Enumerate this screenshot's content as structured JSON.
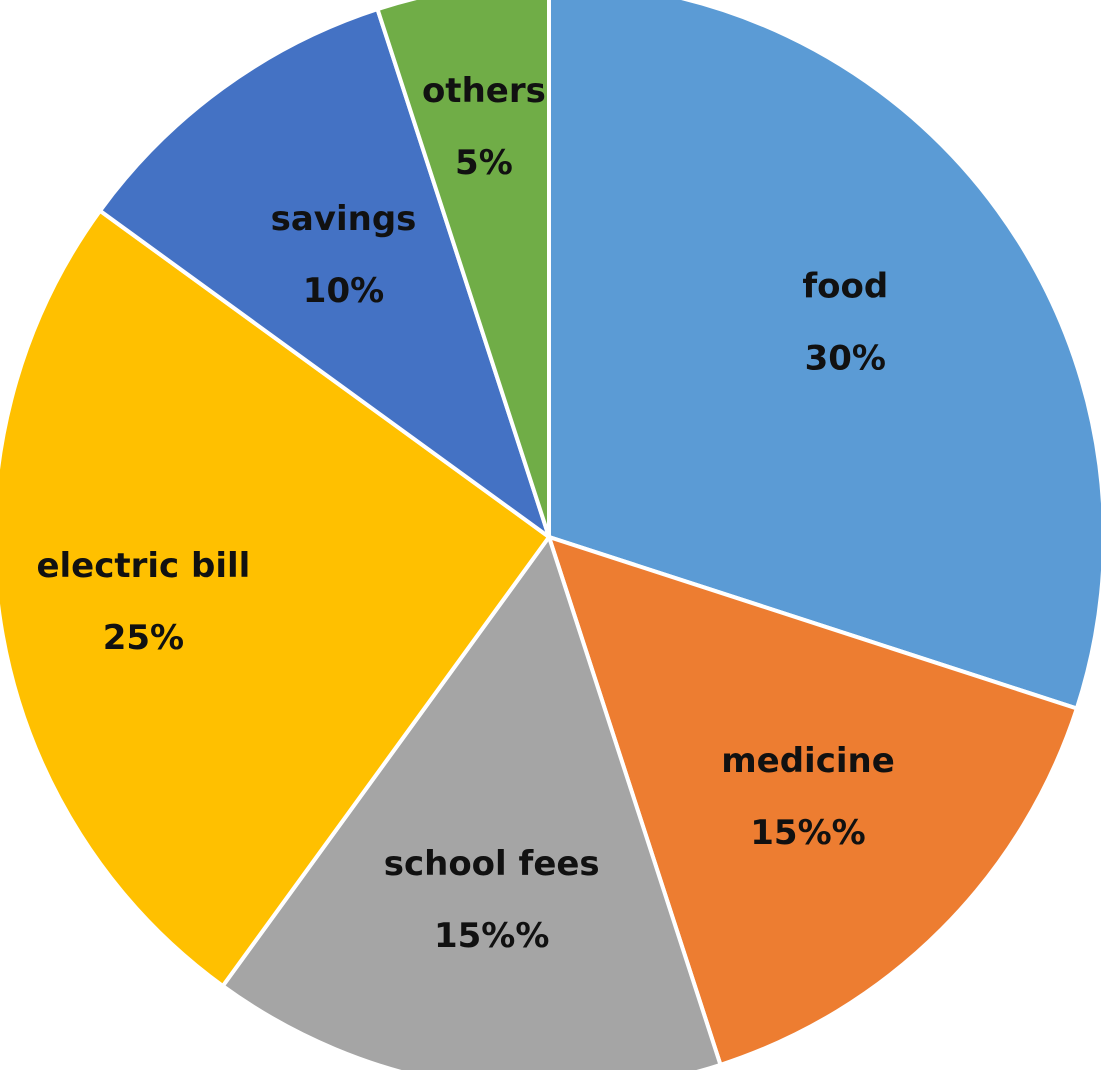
{
  "chart_data": {
    "type": "pie",
    "title": "",
    "start_angle_deg": 0,
    "direction": "clockwise",
    "slices": [
      {
        "label": "food",
        "value": 30,
        "display": "30%",
        "color": "#5B9BD5"
      },
      {
        "label": "medicine",
        "value": 15,
        "display": "15%%",
        "color": "#ED7D31"
      },
      {
        "label": "school fees",
        "value": 15,
        "display": "15%%",
        "color": "#A5A5A5"
      },
      {
        "label": "electric bill",
        "value": 25,
        "display": "25%",
        "color": "#FFC000"
      },
      {
        "label": "savings",
        "value": 10,
        "display": "10%",
        "color": "#4472C4"
      },
      {
        "label": "others",
        "value": 5,
        "display": "5%",
        "color": "#70AD47"
      }
    ]
  }
}
